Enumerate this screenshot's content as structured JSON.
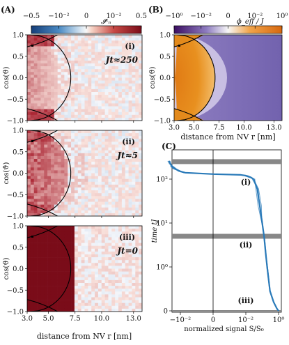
{
  "chart_data": [
    {
      "type": "heatmap",
      "panel_label": "(A)",
      "colorbar": {
        "label": "𝓘ˣₙ",
        "ticks": [
          "−0.5",
          "−10⁻²",
          "0",
          "10⁻²",
          "0.5"
        ],
        "scale": "symlog",
        "range": [
          -0.5,
          0.5
        ],
        "colors": [
          "#163e79",
          "#f7f7f7",
          "#7a0c19"
        ]
      },
      "xlabel": "distance from NV r [nm]",
      "xticks": [
        "3.0",
        "5.0",
        "7.5",
        "10.0",
        "13.0"
      ],
      "ylabel": "cos(ϑ)",
      "yticks": [
        "1.0",
        "0.5",
        "0.0",
        "−0.5",
        "−1.0"
      ],
      "xlim": [
        3.0,
        13.8
      ],
      "ylim": [
        -1.0,
        1.0
      ],
      "subpanels": [
        {
          "label": "(i)",
          "time_label": "Jt≈250"
        },
        {
          "label": "(ii)",
          "time_label": "Jt≈5"
        },
        {
          "label": "(iii)",
          "time_label": "Jt=0"
        }
      ]
    },
    {
      "type": "heatmap",
      "panel_label": "(B)",
      "colorbar": {
        "label": "ϕ_eff / J",
        "ticks": [
          "−10⁰",
          "−10⁻²",
          "0",
          "10⁻²",
          "10⁰"
        ],
        "scale": "symlog",
        "colors": [
          "#3c0e62",
          "#f7f7f7",
          "#d7680f"
        ]
      },
      "xlabel": "distance from NV r [nm]",
      "xticks": [
        "3.0",
        "5.0",
        "7.5",
        "10.0",
        "13.0"
      ],
      "ylabel": "cos(ϑ)",
      "yticks": [
        "1.0",
        "0.5",
        "0.0",
        "−0.5",
        "−1.0"
      ],
      "xlim": [
        3.0,
        13.8
      ],
      "ylim": [
        -1.0,
        1.0
      ]
    },
    {
      "type": "line",
      "panel_label": "(C)",
      "xlabel": "normalized signal S/S₀",
      "ylabel": "time tJ",
      "xscale": "symlog",
      "yscale": "symlog",
      "xticks": [
        "−10⁻²",
        "0",
        "10⁻²",
        "10⁰"
      ],
      "yticks": [
        "10²",
        "10¹",
        "10⁰",
        "0"
      ],
      "regions": [
        "(i)",
        "(ii)",
        "(iii)"
      ],
      "series": [
        {
          "color": "#2b7bb9",
          "x": [
            -0.05,
            -0.04,
            -0.03,
            -0.02,
            -0.01,
            -0.005,
            0.0,
            0.005,
            0.01,
            0.02,
            0.03,
            0.05,
            0.07,
            0.1,
            0.13,
            0.16,
            0.2,
            0.3,
            0.5,
            0.8,
            1.0
          ],
          "y": [
            260,
            220,
            190,
            170,
            150,
            140,
            130,
            125,
            120,
            110,
            100,
            60,
            25,
            10,
            5,
            2.2,
            1.0,
            0.45,
            0.2,
            0.05,
            0.0
          ]
        }
      ],
      "bands_time": [
        250,
        5,
        0
      ]
    }
  ]
}
